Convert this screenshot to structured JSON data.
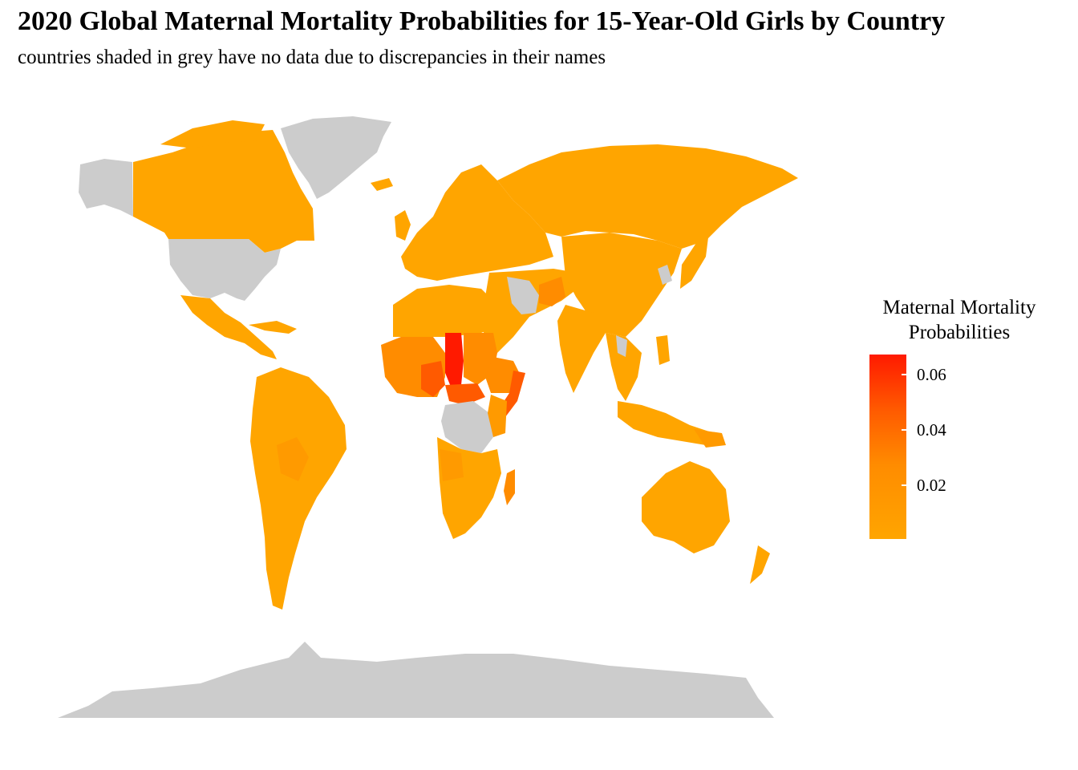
{
  "title": "2020 Global Maternal Mortality Probabilities for 15-Year-Old Girls by Country",
  "subtitle": "countries shaded in grey have no data due to discrepancies in their names",
  "legend": {
    "title_line1": "Maternal Mortality",
    "title_line2": "Probabilities",
    "ticks": [
      "0.06",
      "0.04",
      "0.02"
    ],
    "low_color": "#ffa500",
    "high_color": "#ff1a00"
  },
  "colors": {
    "no_data": "#cccccc",
    "low": "#ffa500",
    "mid": "#ff8c00",
    "high": "#ff5a00",
    "max": "#ff1a00"
  }
}
